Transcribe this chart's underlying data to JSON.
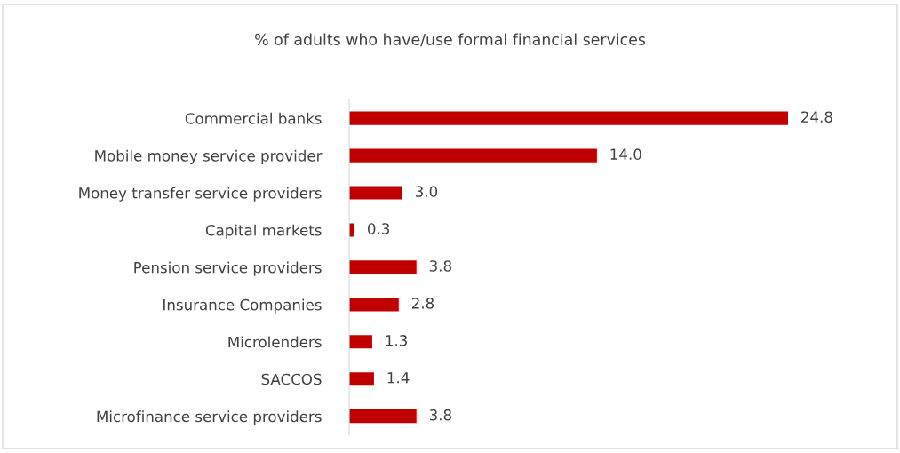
{
  "chart_data": {
    "type": "bar",
    "orientation": "horizontal",
    "title": "% of adults who have/use formal financial services",
    "categories": [
      "Commercial banks",
      "Mobile money service provider",
      "Money transfer service providers",
      "Capital markets",
      "Pension service providers",
      "Insurance Companies",
      "Microlenders",
      "SACCOS",
      "Microfinance service providers"
    ],
    "values": [
      24.8,
      14.0,
      3.0,
      0.3,
      3.8,
      2.8,
      1.3,
      1.4,
      3.8
    ],
    "value_labels": [
      "24.8",
      "14.0",
      "3.0",
      "0.3",
      "3.8",
      "2.8",
      "1.3",
      "1.4",
      "3.8"
    ],
    "color": "#c00000",
    "tick_labels": "y",
    "grid": false,
    "legend": false
  }
}
